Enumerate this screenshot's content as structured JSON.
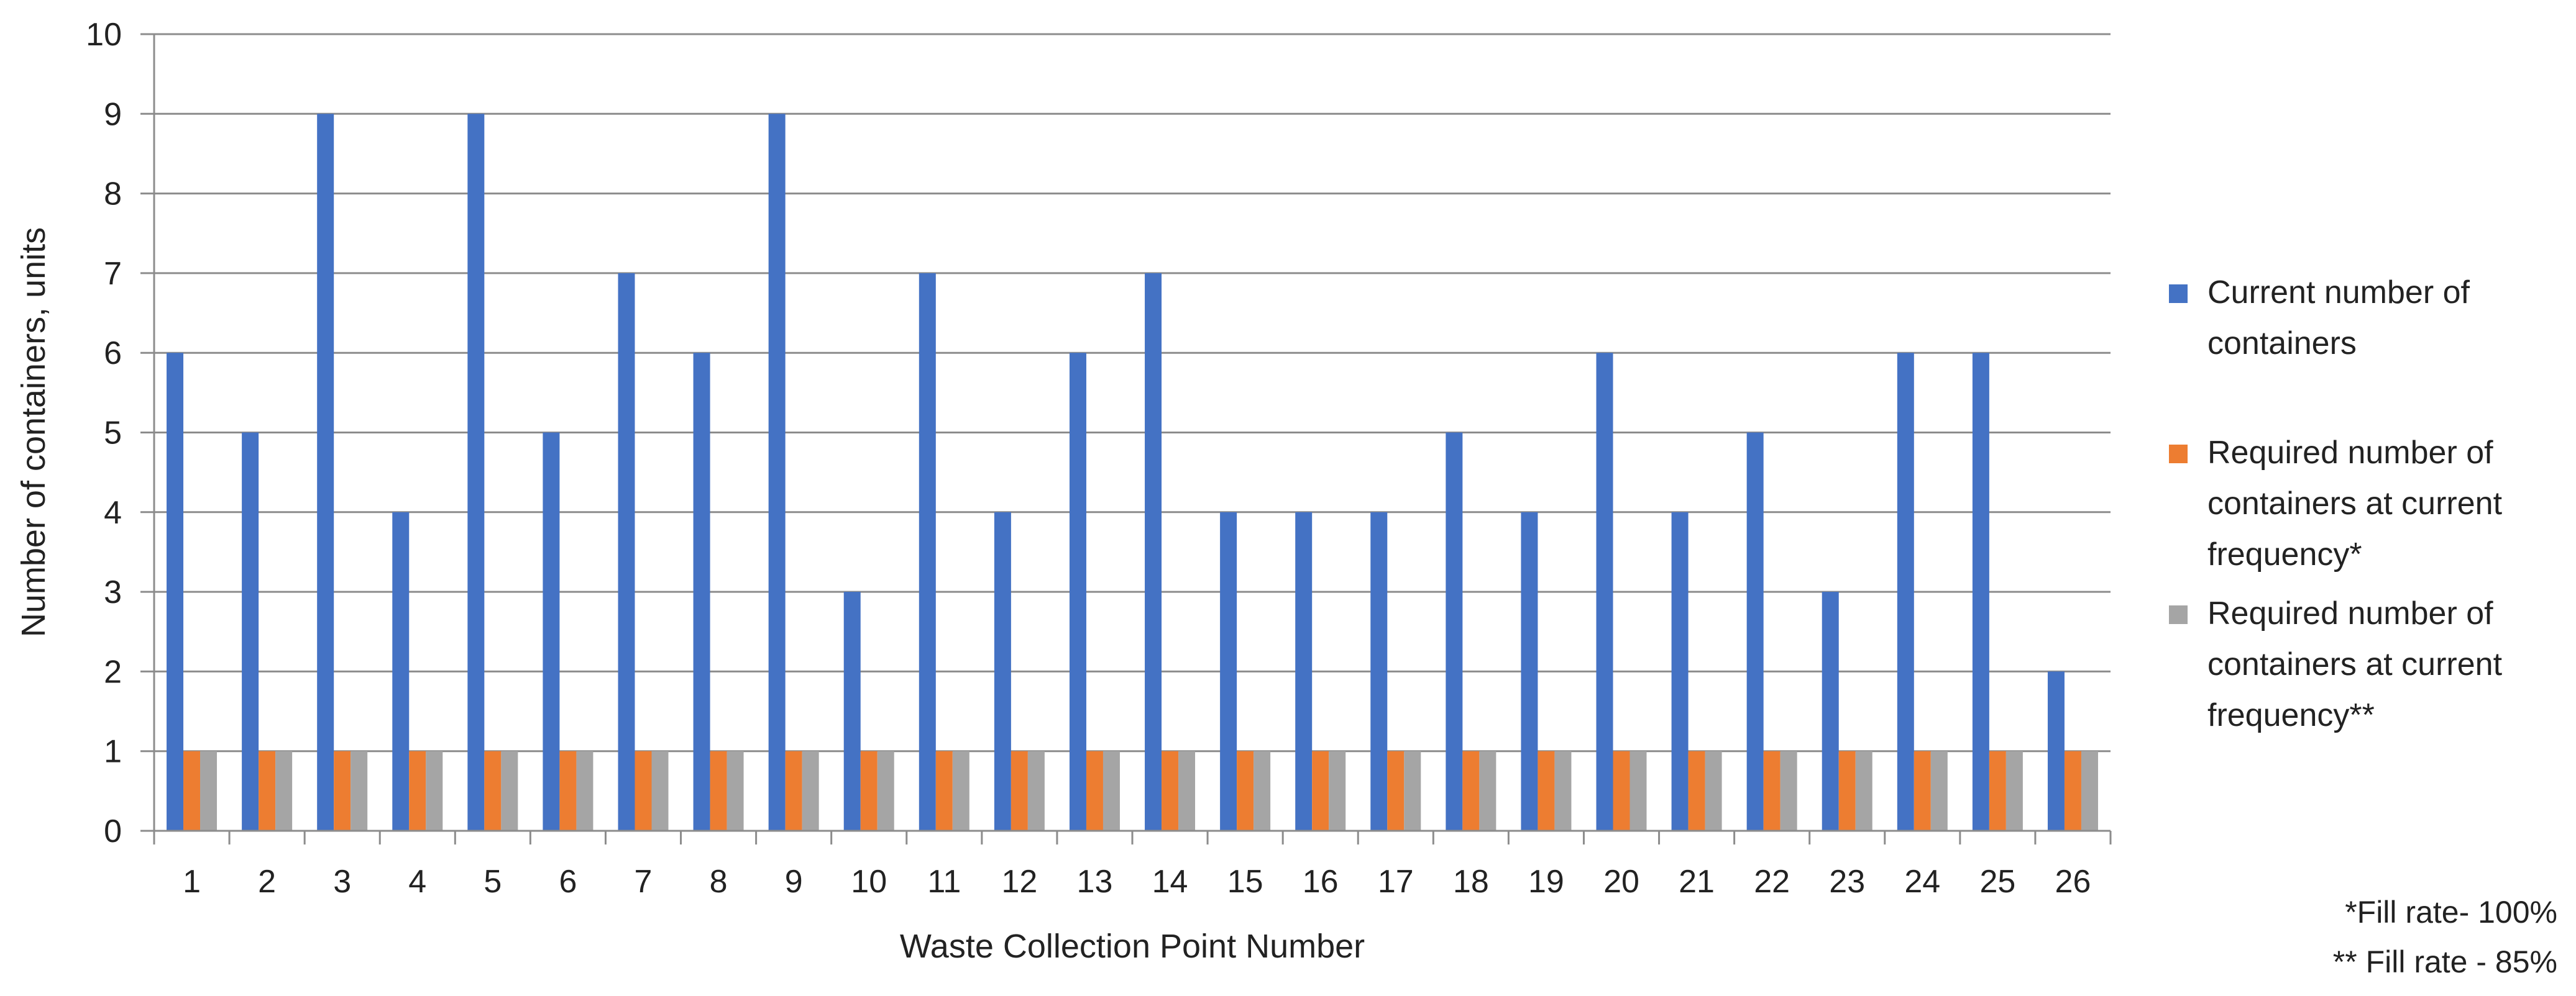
{
  "chart_data": {
    "type": "bar",
    "title": "",
    "xlabel": "Waste Collection Point Number",
    "ylabel": "Number of containers, units",
    "ylim": [
      0,
      10
    ],
    "yticks": [
      0,
      1,
      2,
      3,
      4,
      5,
      6,
      7,
      8,
      9,
      10
    ],
    "grid": true,
    "legend_position": "right",
    "categories": [
      "1",
      "2",
      "3",
      "4",
      "5",
      "6",
      "7",
      "8",
      "9",
      "10",
      "11",
      "12",
      "13",
      "14",
      "15",
      "16",
      "17",
      "18",
      "19",
      "20",
      "21",
      "22",
      "23",
      "24",
      "25",
      "26"
    ],
    "series": [
      {
        "name": "Current number of containers",
        "color": "#4472C4",
        "values": [
          6,
          5,
          9,
          4,
          9,
          5,
          7,
          6,
          9,
          3,
          7,
          4,
          6,
          7,
          4,
          4,
          4,
          5,
          4,
          6,
          4,
          5,
          3,
          6,
          6,
          2
        ]
      },
      {
        "name": "Required number of containers at current frequency*",
        "color": "#ED7D31",
        "values": [
          1,
          1,
          1,
          1,
          1,
          1,
          1,
          1,
          1,
          1,
          1,
          1,
          1,
          1,
          1,
          1,
          1,
          1,
          1,
          1,
          1,
          1,
          1,
          1,
          1,
          1
        ]
      },
      {
        "name": "Required number of containers at current frequency**",
        "color": "#A5A5A5",
        "values": [
          1,
          1,
          1,
          1,
          1,
          1,
          1,
          1,
          1,
          1,
          1,
          1,
          1,
          1,
          1,
          1,
          1,
          1,
          1,
          1,
          1,
          1,
          1,
          1,
          1,
          1
        ]
      }
    ],
    "footnotes": [
      "*Fill rate- 100%",
      "** Fill rate - 85%"
    ]
  }
}
